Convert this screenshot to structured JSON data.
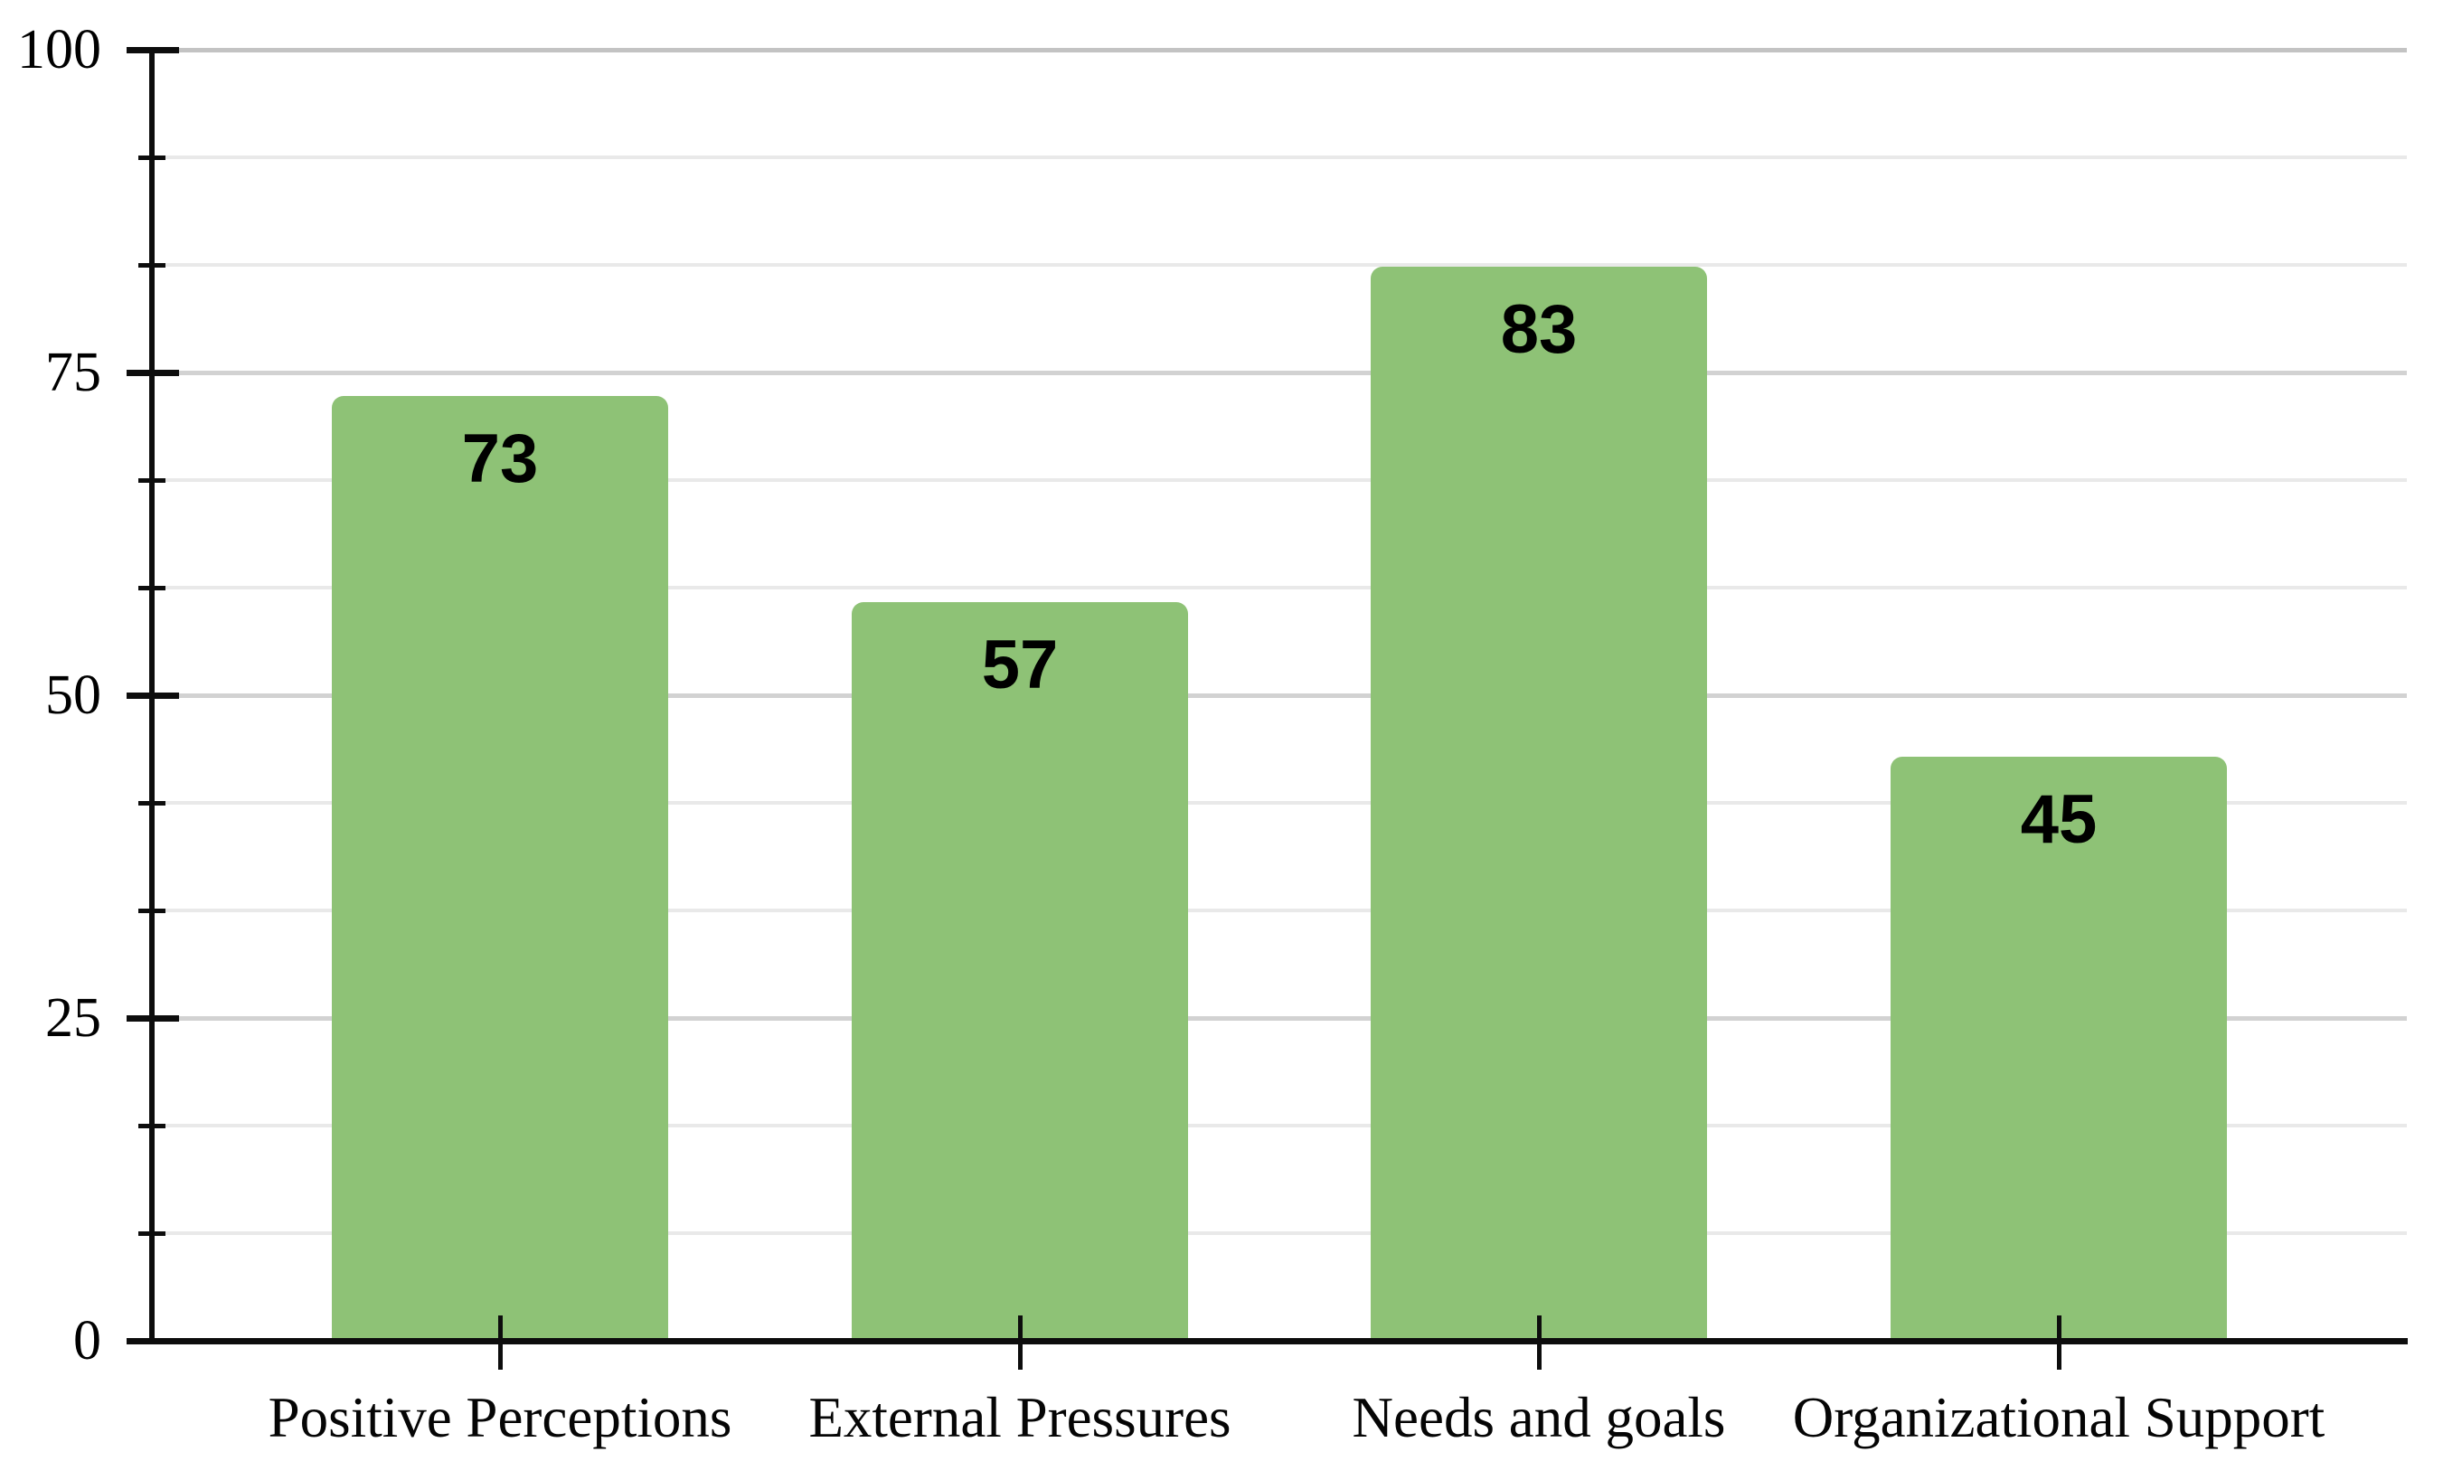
{
  "chart_data": {
    "type": "bar",
    "title": "",
    "xlabel": "",
    "ylabel": "",
    "categories": [
      "Positive Perceptions",
      "External Pressures",
      "Needs and goals",
      "Organizational Support"
    ],
    "values": [
      73,
      57,
      83,
      45
    ],
    "value_labels": [
      "73",
      "57",
      "83",
      "45"
    ],
    "ylim": [
      0,
      100
    ],
    "yticks": [
      0,
      25,
      50,
      75,
      100
    ],
    "ytick_labels": [
      "0",
      "25",
      "50",
      "75",
      "100"
    ],
    "minor_tick_step": 8.33,
    "minor_divisions_per_major": 3,
    "grid": "horizontal major and minor gridlines",
    "legend": "none",
    "bar_color": "#8ec276",
    "value_label_color": "#000000",
    "axis_color": "#0d0d0d",
    "major_gridline_color": "#d2d2d2",
    "minor_gridline_color": "#e9e9e9"
  }
}
